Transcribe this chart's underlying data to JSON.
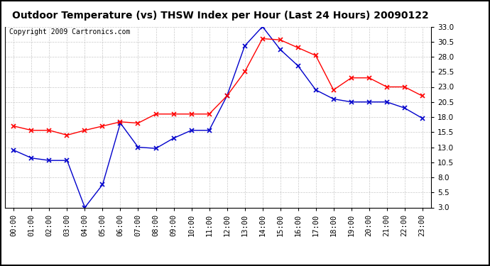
{
  "title": "Outdoor Temperature (vs) THSW Index per Hour (Last 24 Hours) 20090122",
  "copyright": "Copyright 2009 Cartronics.com",
  "hours": [
    "00:00",
    "01:00",
    "02:00",
    "03:00",
    "04:00",
    "05:00",
    "06:00",
    "07:00",
    "08:00",
    "09:00",
    "10:00",
    "11:00",
    "12:00",
    "13:00",
    "14:00",
    "15:00",
    "16:00",
    "17:00",
    "18:00",
    "19:00",
    "20:00",
    "21:00",
    "22:00",
    "23:00"
  ],
  "temp_red": [
    16.5,
    15.8,
    15.8,
    15.0,
    15.8,
    16.5,
    17.2,
    17.0,
    18.5,
    18.5,
    18.5,
    18.5,
    21.5,
    25.5,
    31.0,
    30.8,
    29.5,
    28.2,
    22.5,
    24.5,
    24.5,
    23.0,
    23.0,
    21.5
  ],
  "thsw_blue": [
    12.5,
    11.2,
    10.8,
    10.8,
    3.0,
    6.8,
    17.0,
    13.0,
    12.8,
    14.5,
    15.8,
    15.8,
    21.5,
    29.8,
    33.0,
    29.2,
    26.5,
    22.5,
    21.0,
    20.5,
    20.5,
    20.5,
    19.5,
    17.8
  ],
  "ymin": 3.0,
  "ymax": 33.0,
  "yticks": [
    3.0,
    5.5,
    8.0,
    10.5,
    13.0,
    15.5,
    18.0,
    20.5,
    23.0,
    25.5,
    28.0,
    30.5,
    33.0
  ],
  "red_color": "#ff0000",
  "blue_color": "#0000cc",
  "grid_color": "#bbbbbb",
  "bg_color": "#ffffff",
  "plot_bg_color": "#ffffff",
  "title_fontsize": 10,
  "copyright_fontsize": 7,
  "tick_fontsize": 7.5
}
